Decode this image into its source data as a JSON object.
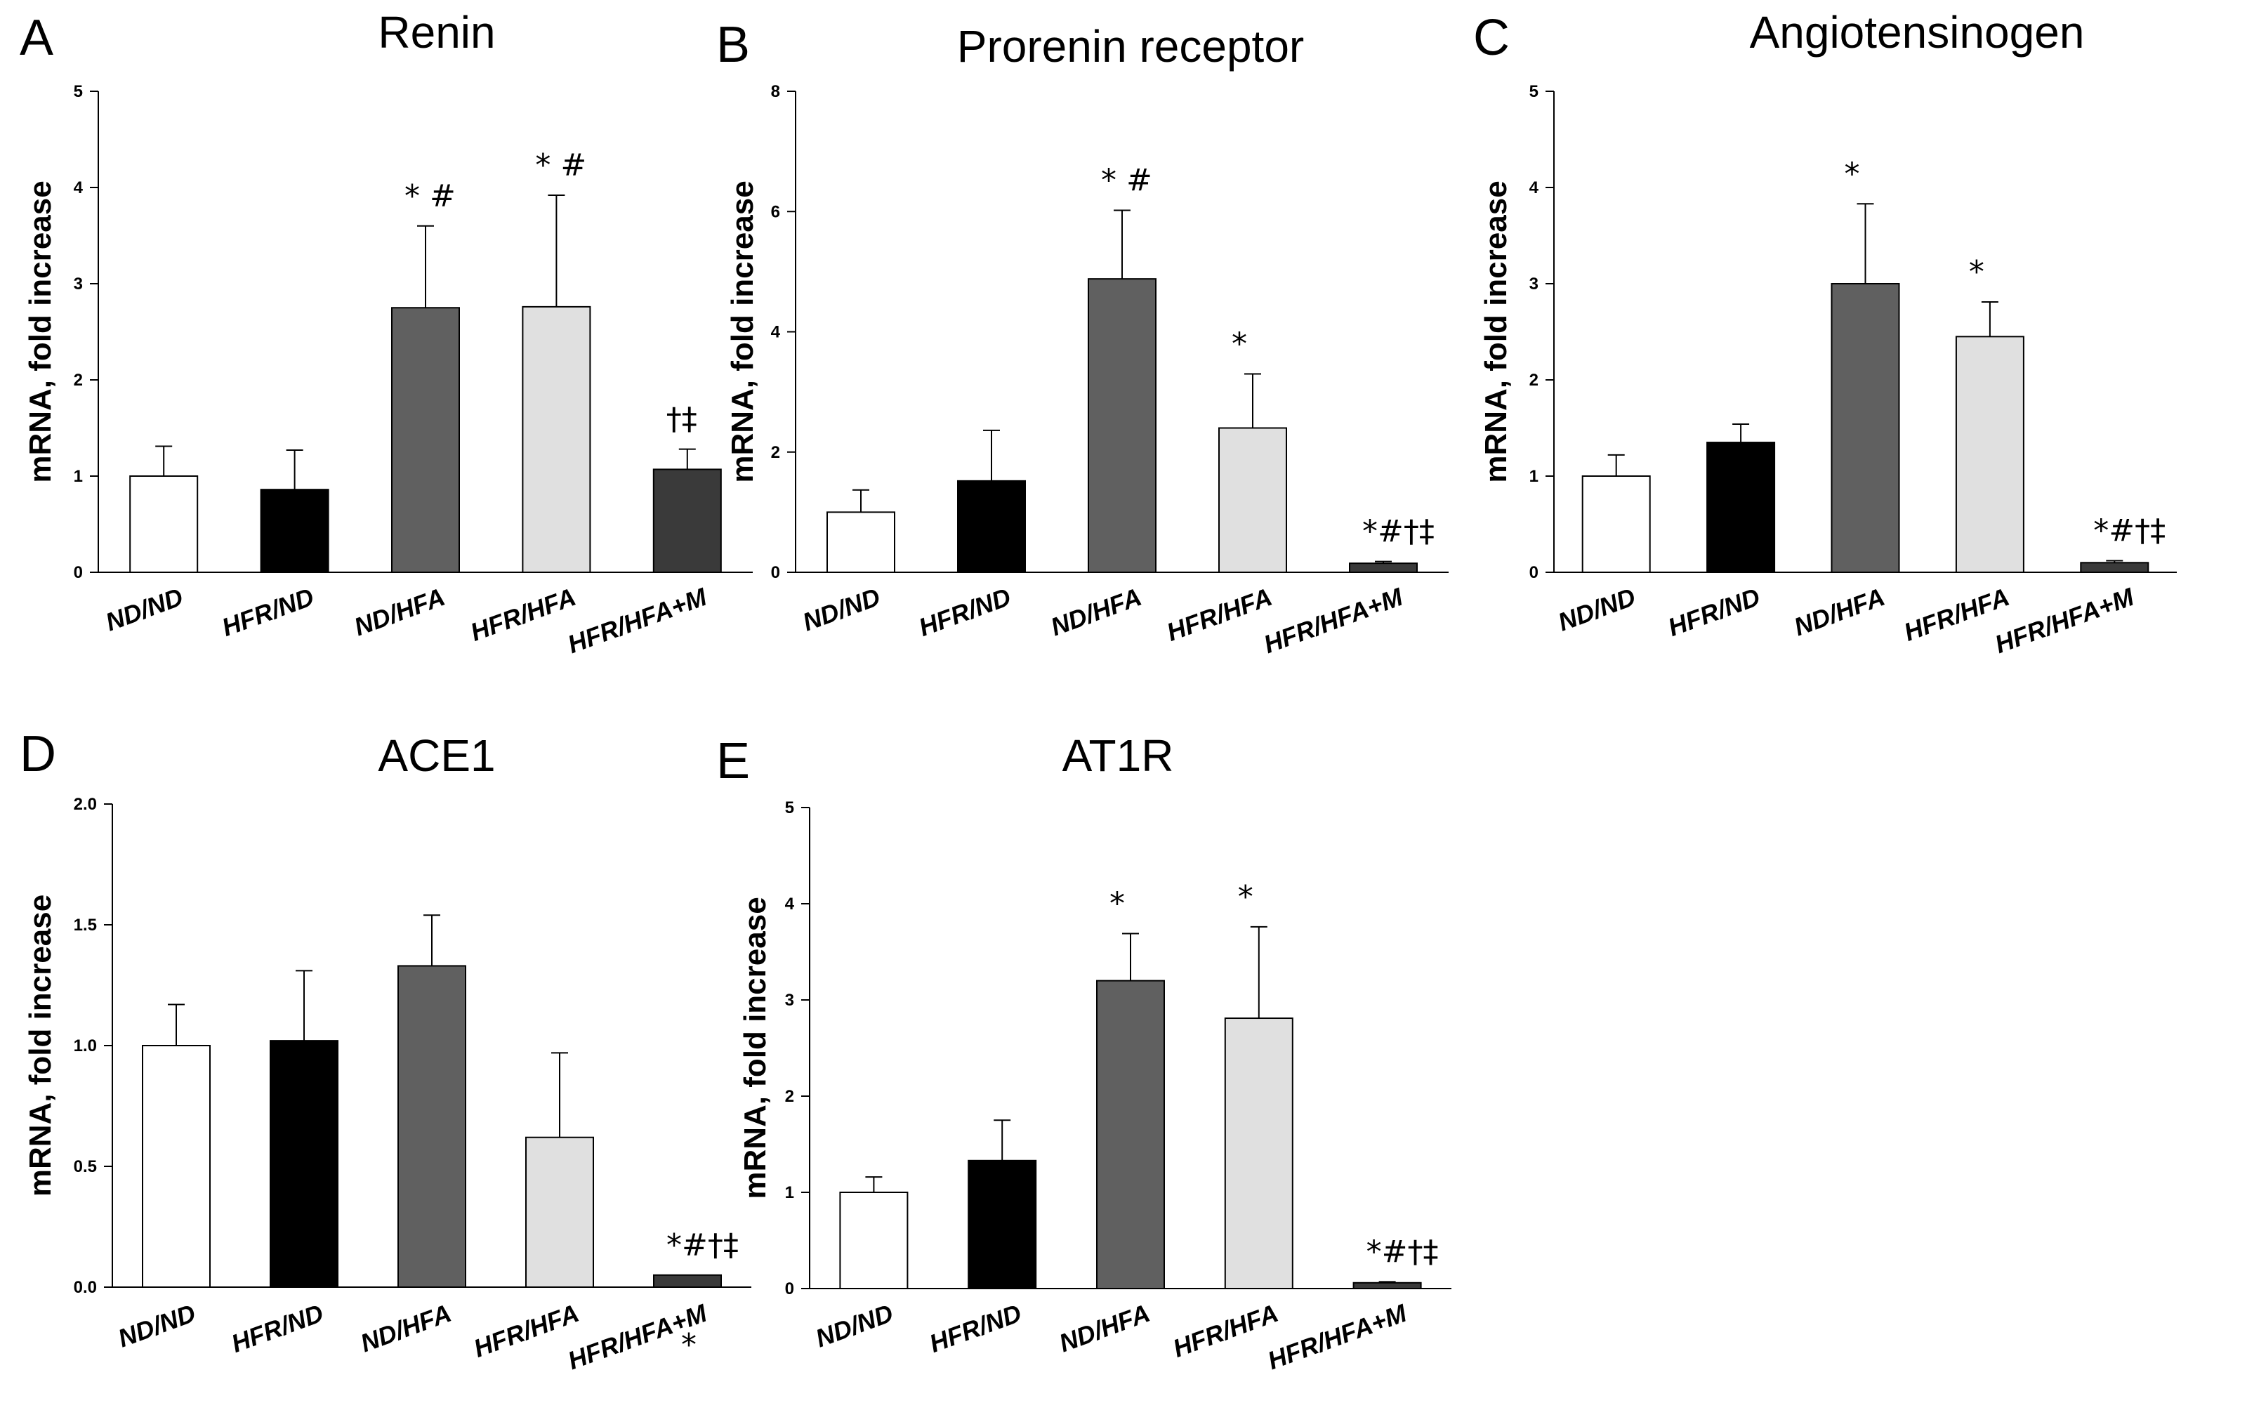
{
  "chart_data": [
    {
      "type": "bar",
      "panel": "A",
      "title": "Renin",
      "ylabel": "mRNA, fold increase",
      "ylim": [
        0,
        5
      ],
      "yticks": [
        "0",
        "1",
        "2",
        "3",
        "4",
        "5"
      ],
      "categories": [
        "ND/ND",
        "HFR/ND",
        "ND/HFA",
        "HFR/HFA",
        "HFR/HFA+M"
      ],
      "values": [
        1.0,
        0.86,
        2.75,
        2.76,
        1.07
      ],
      "errors": [
        0.31,
        0.41,
        0.85,
        1.16,
        0.21
      ],
      "annotations": [
        "",
        "",
        "* #",
        "* #",
        "†‡"
      ]
    },
    {
      "type": "bar",
      "panel": "B",
      "title": "Prorenin receptor",
      "ylabel": "mRNA, fold increase",
      "ylim": [
        0,
        8
      ],
      "yticks": [
        "0",
        "2",
        "4",
        "6",
        "8"
      ],
      "categories": [
        "ND/ND",
        "HFR/ND",
        "ND/HFA",
        "HFR/HFA",
        "HFR/HFA+M"
      ],
      "values": [
        1.0,
        1.52,
        4.88,
        2.4,
        0.15
      ],
      "errors": [
        0.37,
        0.84,
        1.14,
        0.9,
        0.03
      ],
      "annotations": [
        "",
        "",
        "* #",
        "*",
        "*#†‡"
      ]
    },
    {
      "type": "bar",
      "panel": "C",
      "title": "Angiotensinogen",
      "ylabel": "mRNA, fold increase",
      "ylim": [
        0,
        5
      ],
      "yticks": [
        "0",
        "1",
        "2",
        "3",
        "4",
        "5"
      ],
      "categories": [
        "ND/ND",
        "HFR/ND",
        "ND/HFA",
        "HFR/HFA",
        "HFR/HFA+M"
      ],
      "values": [
        1.0,
        1.35,
        3.0,
        2.45,
        0.1
      ],
      "errors": [
        0.22,
        0.19,
        0.83,
        0.36,
        0.02
      ],
      "annotations": [
        "",
        "",
        "*",
        "*",
        "*#†‡"
      ]
    },
    {
      "type": "bar",
      "panel": "D",
      "title": "ACE1",
      "ylabel": "mRNA, fold increase",
      "ylim": [
        0,
        2.0
      ],
      "yticks": [
        "0.0",
        "0.5",
        "1.0",
        "1.5",
        "2.0"
      ],
      "categories": [
        "ND/ND",
        "HFR/ND",
        "ND/HFA",
        "HFR/HFA",
        "HFR/HFA+M"
      ],
      "values": [
        1.0,
        1.02,
        1.33,
        0.62,
        0.05
      ],
      "errors": [
        0.17,
        0.29,
        0.21,
        0.35,
        0.0
      ],
      "annotations": [
        "",
        "",
        "",
        "",
        "*#†‡"
      ],
      "extra_mark": "*"
    },
    {
      "type": "bar",
      "panel": "E",
      "title": "AT1R",
      "ylabel": "mRNA, fold increase",
      "ylim": [
        0,
        5
      ],
      "yticks": [
        "0",
        "1",
        "2",
        "3",
        "4",
        "5"
      ],
      "categories": [
        "ND/ND",
        "HFR/ND",
        "ND/HFA",
        "HFR/HFA",
        "HFR/HFA+M"
      ],
      "values": [
        1.0,
        1.33,
        3.2,
        2.81,
        0.06
      ],
      "errors": [
        0.16,
        0.42,
        0.49,
        0.95,
        0.01
      ],
      "annotations": [
        "",
        "",
        "*",
        "*",
        "*#†‡"
      ]
    }
  ],
  "colors": {
    "bar_fills": [
      "#ffffff",
      "#000000",
      "#606060",
      "#e0e0e0",
      "#3a3a3a"
    ],
    "axis": "#000000"
  }
}
